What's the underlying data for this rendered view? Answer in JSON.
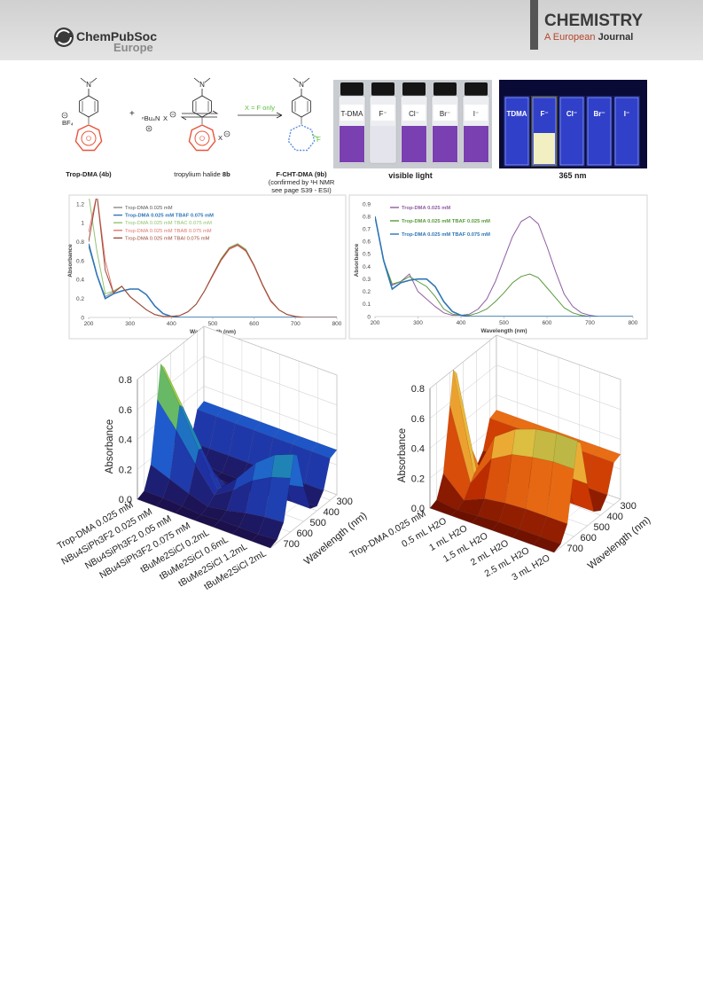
{
  "header": {
    "publisher": "ChemPubSoc",
    "publisher_region": "Europe",
    "journal": "CHEMISTRY",
    "journal_sub": "A European",
    "journal_sub_bold": "Journal"
  },
  "scheme": {
    "atom_n": "N",
    "counterion": "BF₄",
    "plus": "+",
    "reagent": "ⁿBu₄N",
    "halide": "X",
    "reactant": "Trop-DMA (4b)",
    "intermediate": "tropylium halide",
    "intermediate_id": "8b",
    "condition": "X = F only",
    "fluorine": "F",
    "product": "F-CHT-DMA (9b)",
    "note_1": "(confirmed by ¹H NMR",
    "note_2": "see page  S39 - ESI)"
  },
  "photos": {
    "visible": {
      "caption": "visible light",
      "labels": [
        "T-DMA",
        "F⁻",
        "Cl⁻",
        "Br⁻",
        "I⁻"
      ]
    },
    "uv": {
      "caption": "365 nm",
      "labels": [
        "TDMA",
        "F⁻",
        "Cl⁻",
        "Br⁻",
        "I⁻"
      ]
    }
  },
  "chart_data": [
    {
      "type": "line",
      "xlabel": "Wavelength (nm)",
      "ylabel": "Absorbance",
      "legend": "upper left",
      "x": [
        200,
        220,
        240,
        260,
        280,
        300,
        320,
        340,
        360,
        380,
        400,
        420,
        440,
        460,
        480,
        500,
        520,
        540,
        560,
        580,
        600,
        620,
        640,
        660,
        680,
        700,
        720,
        740,
        760,
        780,
        800
      ],
      "xlim": [
        200,
        800
      ],
      "xticks": [
        200,
        300,
        400,
        500,
        600,
        700,
        800
      ],
      "ylim": [
        0,
        1.2
      ],
      "yticks": [
        0,
        0.2,
        0.4,
        0.6,
        0.8,
        1,
        1.2
      ],
      "series": [
        {
          "name": "Trop-DMA 0.025 mM",
          "color": "#8c8c8c",
          "values": [
            0.75,
            0.45,
            0.22,
            0.27,
            0.33,
            0.22,
            0.15,
            0.08,
            0.03,
            0.01,
            0.01,
            0.02,
            0.06,
            0.14,
            0.28,
            0.45,
            0.62,
            0.74,
            0.78,
            0.72,
            0.55,
            0.35,
            0.18,
            0.08,
            0.03,
            0.01,
            0,
            0,
            0,
            0,
            0
          ]
        },
        {
          "name": "Trop-DMA 0.025 mM TBAF 0.075 mM",
          "color": "#2e75b6",
          "values": [
            0.78,
            0.45,
            0.2,
            0.25,
            0.28,
            0.3,
            0.3,
            0.24,
            0.12,
            0.04,
            0.01,
            0,
            0,
            0,
            0,
            0,
            0,
            0,
            0,
            0,
            0,
            0,
            0,
            0,
            0,
            0,
            0,
            0,
            0,
            0,
            0
          ]
        },
        {
          "name": "Trop-DMA 0.025 mM TBAC 0.075 mM",
          "color": "#92c36e",
          "values": [
            1.3,
            0.7,
            0.25,
            0.28,
            0.33,
            0.22,
            0.15,
            0.08,
            0.03,
            0.01,
            0.01,
            0.02,
            0.06,
            0.14,
            0.28,
            0.45,
            0.62,
            0.74,
            0.78,
            0.72,
            0.55,
            0.35,
            0.18,
            0.08,
            0.03,
            0.01,
            0,
            0,
            0,
            0,
            0
          ]
        },
        {
          "name": "Trop-DMA 0.025 mM TBAB 0.075 mM",
          "color": "#e0766e",
          "values": [
            0.9,
            1.3,
            0.6,
            0.26,
            0.33,
            0.22,
            0.15,
            0.08,
            0.03,
            0.01,
            0.01,
            0.02,
            0.06,
            0.14,
            0.28,
            0.44,
            0.6,
            0.72,
            0.76,
            0.7,
            0.54,
            0.34,
            0.17,
            0.08,
            0.03,
            0.01,
            0,
            0,
            0,
            0,
            0
          ]
        },
        {
          "name": "Trop-DMA 0.025 mM TBAI 0.075 mM",
          "color": "#9b4a3a",
          "values": [
            0.8,
            1.3,
            0.5,
            0.26,
            0.33,
            0.22,
            0.15,
            0.08,
            0.03,
            0.01,
            0.01,
            0.02,
            0.06,
            0.14,
            0.28,
            0.45,
            0.61,
            0.73,
            0.77,
            0.71,
            0.55,
            0.35,
            0.18,
            0.08,
            0.03,
            0.01,
            0,
            0,
            0,
            0,
            0
          ]
        }
      ]
    },
    {
      "type": "line",
      "xlabel": "Wavelength (nm)",
      "ylabel": "Absorbance",
      "legend": "upper left",
      "x": [
        200,
        220,
        240,
        260,
        280,
        300,
        320,
        340,
        360,
        380,
        400,
        420,
        440,
        460,
        480,
        500,
        520,
        540,
        560,
        580,
        600,
        620,
        640,
        660,
        680,
        700,
        720,
        740,
        760,
        780,
        800
      ],
      "xlim": [
        200,
        800
      ],
      "xticks": [
        200,
        300,
        400,
        500,
        600,
        700,
        800
      ],
      "ylim": [
        0,
        0.9
      ],
      "yticks": [
        0,
        0.1,
        0.2,
        0.3,
        0.4,
        0.5,
        0.6,
        0.7,
        0.8,
        0.9
      ],
      "series": [
        {
          "name": "Trop-DMA 0.025 mM",
          "color": "#8e5ea2",
          "values": [
            0.8,
            0.45,
            0.25,
            0.28,
            0.34,
            0.2,
            0.14,
            0.08,
            0.03,
            0.01,
            0.01,
            0.02,
            0.06,
            0.14,
            0.28,
            0.46,
            0.64,
            0.76,
            0.8,
            0.74,
            0.56,
            0.36,
            0.18,
            0.08,
            0.03,
            0.01,
            0,
            0,
            0,
            0,
            0
          ]
        },
        {
          "name": "Trop-DMA 0.025 mM TBAF 0.025 mM",
          "color": "#5a9a3c",
          "values": [
            0.8,
            0.45,
            0.26,
            0.28,
            0.32,
            0.28,
            0.24,
            0.16,
            0.06,
            0.02,
            0.01,
            0.01,
            0.03,
            0.06,
            0.12,
            0.19,
            0.27,
            0.32,
            0.34,
            0.31,
            0.23,
            0.15,
            0.07,
            0.03,
            0.01,
            0,
            0,
            0,
            0,
            0,
            0
          ]
        },
        {
          "name": "Trop-DMA 0.025 mM TBAF 0.075 mM",
          "color": "#2e75b6",
          "values": [
            0.8,
            0.45,
            0.22,
            0.27,
            0.29,
            0.3,
            0.3,
            0.24,
            0.12,
            0.04,
            0.01,
            0,
            0,
            0,
            0,
            0,
            0,
            0,
            0,
            0,
            0,
            0,
            0,
            0,
            0,
            0,
            0,
            0,
            0,
            0,
            0
          ]
        }
      ]
    },
    {
      "type": "surface3d",
      "xlabel": "Wavelength (nm)",
      "zlabel": "Absorbance",
      "x": [
        250,
        300,
        350,
        400,
        450,
        500,
        550,
        575,
        600,
        650,
        700,
        750
      ],
      "xlim": [
        250,
        750
      ],
      "xticks": [
        300,
        400,
        500,
        600,
        700
      ],
      "zlim": [
        0,
        0.8
      ],
      "zticks": [
        {
          "value": 0,
          "label": "0.0"
        },
        0.2,
        0.4,
        0.6,
        0.8
      ],
      "colormap": [
        "#1c0f4a",
        "#1f2fa0",
        "#1f5fd0",
        "#20a0a0",
        "#9ccc3c",
        "#f0e040"
      ],
      "categories": [
        "Trop-DMA 0.025 mM",
        "NBu4SiPh3F2 0.025 mM",
        "NBu4SiPh3F2 0.05 mM",
        "NBu4SiPh3F2 0.075 mM",
        "tBuMe2SiCl 0.2mL",
        "tBuMe2SiCl 0.6mL",
        "tBuMe2SiCl 1.2mL",
        "tBuMe2SiCl 2mL"
      ],
      "values": [
        [
          0.3,
          0.28,
          0.1,
          0.03,
          0.08,
          0.35,
          0.74,
          0.78,
          0.56,
          0.16,
          0.02,
          0
        ],
        [
          0.3,
          0.28,
          0.1,
          0.03,
          0.06,
          0.25,
          0.52,
          0.55,
          0.4,
          0.11,
          0.02,
          0
        ],
        [
          0.3,
          0.28,
          0.1,
          0.02,
          0.03,
          0.14,
          0.29,
          0.3,
          0.22,
          0.06,
          0.01,
          0
        ],
        [
          0.3,
          0.28,
          0.1,
          0.02,
          0.01,
          0.04,
          0.08,
          0.08,
          0.06,
          0.02,
          0,
          0
        ],
        [
          0.3,
          0.28,
          0.1,
          0.02,
          0.02,
          0.09,
          0.19,
          0.2,
          0.14,
          0.04,
          0.01,
          0
        ],
        [
          0.3,
          0.28,
          0.1,
          0.02,
          0.04,
          0.16,
          0.33,
          0.35,
          0.25,
          0.07,
          0.01,
          0
        ],
        [
          0.3,
          0.28,
          0.1,
          0.02,
          0.05,
          0.2,
          0.43,
          0.45,
          0.32,
          0.09,
          0.01,
          0
        ],
        [
          0.3,
          0.28,
          0.1,
          0.03,
          0.05,
          0.23,
          0.48,
          0.5,
          0.36,
          0.1,
          0.02,
          0
        ]
      ]
    },
    {
      "type": "surface3d",
      "xlabel": "Wavelength (nm)",
      "zlabel": "Absorbance",
      "x": [
        250,
        300,
        350,
        400,
        450,
        500,
        550,
        575,
        600,
        650,
        700,
        750
      ],
      "xlim": [
        250,
        750
      ],
      "xticks": [
        300,
        400,
        500,
        600,
        700
      ],
      "zlim": [
        0,
        0.8
      ],
      "zticks": [
        {
          "value": 0,
          "label": "0.0"
        },
        0.2,
        0.4,
        0.6,
        0.8
      ],
      "colormap": [
        "#6b0f00",
        "#c83200",
        "#f07a18",
        "#e8c040",
        "#6aa84f",
        "#1d5f8a"
      ],
      "categories": [
        "Trop-DMA 0.025 mM",
        "0.5 mL H2O",
        "1 mL H2O",
        "1.5 mL H2O",
        "2 mL H2O",
        "2.5 mL H2O",
        "3 mL H2O"
      ],
      "values": [
        [
          0.3,
          0.28,
          0.1,
          0.03,
          0.08,
          0.36,
          0.76,
          0.8,
          0.58,
          0.16,
          0.02,
          0
        ],
        [
          0.3,
          0.28,
          0.1,
          0.02,
          0.02,
          0.07,
          0.14,
          0.15,
          0.11,
          0.03,
          0,
          0
        ],
        [
          0.3,
          0.28,
          0.1,
          0.02,
          0.05,
          0.2,
          0.43,
          0.45,
          0.32,
          0.09,
          0.01,
          0
        ],
        [
          0.3,
          0.28,
          0.1,
          0.03,
          0.06,
          0.25,
          0.52,
          0.55,
          0.4,
          0.11,
          0.02,
          0
        ],
        [
          0.3,
          0.28,
          0.1,
          0.03,
          0.06,
          0.27,
          0.57,
          0.6,
          0.43,
          0.12,
          0.02,
          0
        ],
        [
          0.3,
          0.28,
          0.1,
          0.03,
          0.06,
          0.28,
          0.59,
          0.62,
          0.45,
          0.12,
          0.02,
          0
        ],
        [
          0.3,
          0.28,
          0.1,
          0.03,
          0.06,
          0.28,
          0.59,
          0.62,
          0.45,
          0.12,
          0.02,
          0
        ]
      ]
    }
  ]
}
